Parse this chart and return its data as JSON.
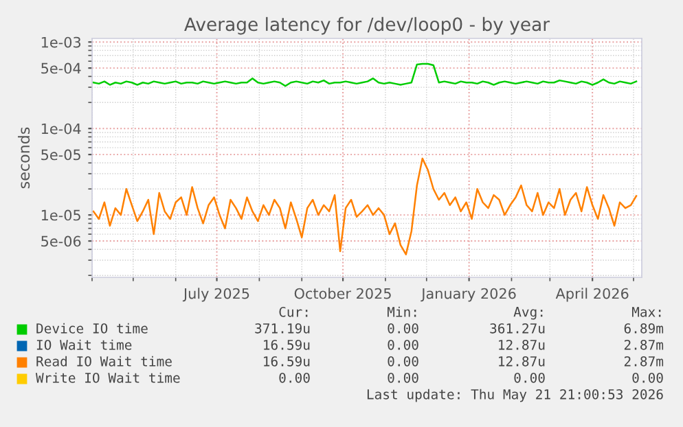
{
  "chart_data": {
    "type": "line",
    "title": "Average latency for /dev/loop0 - by year",
    "ylabel": "seconds",
    "log": "y",
    "grid": true,
    "legend": "bottom",
    "line_style": "solid",
    "marker": "none",
    "ylim": [
      1.9e-06,
      0.0011
    ],
    "yticks": [
      {
        "value": 0.001,
        "label": "1e-03"
      },
      {
        "value": 0.0005,
        "label": "5e-04"
      },
      {
        "value": 0.0001,
        "label": "1e-04"
      },
      {
        "value": 5e-05,
        "label": "5e-05"
      },
      {
        "value": 1e-05,
        "label": "1e-05"
      },
      {
        "value": 5e-06,
        "label": "5e-06"
      }
    ],
    "xlim": [
      "2025-04-01",
      "2026-05-07"
    ],
    "xticks": [
      {
        "value": "2025-07-01",
        "label": "July 2025"
      },
      {
        "value": "2025-10-01",
        "label": "October 2025"
      },
      {
        "value": "2026-01-01",
        "label": "January 2026"
      },
      {
        "value": "2026-04-01",
        "label": "April 2026"
      }
    ],
    "x": [
      "2025-04-02",
      "2025-04-06",
      "2025-04-10",
      "2025-04-14",
      "2025-04-18",
      "2025-04-22",
      "2025-04-26",
      "2025-04-30",
      "2025-05-04",
      "2025-05-08",
      "2025-05-12",
      "2025-05-16",
      "2025-05-20",
      "2025-05-24",
      "2025-05-28",
      "2025-06-01",
      "2025-06-05",
      "2025-06-09",
      "2025-06-13",
      "2025-06-17",
      "2025-06-21",
      "2025-06-25",
      "2025-06-29",
      "2025-07-03",
      "2025-07-07",
      "2025-07-11",
      "2025-07-15",
      "2025-07-19",
      "2025-07-23",
      "2025-07-27",
      "2025-07-31",
      "2025-08-04",
      "2025-08-08",
      "2025-08-12",
      "2025-08-16",
      "2025-08-20",
      "2025-08-24",
      "2025-08-28",
      "2025-09-01",
      "2025-09-05",
      "2025-09-09",
      "2025-09-13",
      "2025-09-17",
      "2025-09-21",
      "2025-09-25",
      "2025-09-29",
      "2025-10-03",
      "2025-10-07",
      "2025-10-11",
      "2025-10-15",
      "2025-10-19",
      "2025-10-23",
      "2025-10-27",
      "2025-10-31",
      "2025-11-04",
      "2025-11-08",
      "2025-11-12",
      "2025-11-16",
      "2025-11-20",
      "2025-11-24",
      "2025-11-28",
      "2025-12-02",
      "2025-12-06",
      "2025-12-10",
      "2025-12-14",
      "2025-12-18",
      "2025-12-22",
      "2025-12-26",
      "2025-12-30",
      "2026-01-03",
      "2026-01-07",
      "2026-01-11",
      "2026-01-15",
      "2026-01-19",
      "2026-01-23",
      "2026-01-27",
      "2026-01-31",
      "2026-02-04",
      "2026-02-08",
      "2026-02-12",
      "2026-02-16",
      "2026-02-20",
      "2026-02-24",
      "2026-02-28",
      "2026-03-04",
      "2026-03-08",
      "2026-03-12",
      "2026-03-16",
      "2026-03-20",
      "2026-03-24",
      "2026-03-28",
      "2026-04-01",
      "2026-04-05",
      "2026-04-09",
      "2026-04-13",
      "2026-04-17",
      "2026-04-21",
      "2026-04-25",
      "2026-04-29",
      "2026-05-03"
    ],
    "series": [
      {
        "name": "Device IO time",
        "color": "#00cc00",
        "values": [
          0.00034,
          0.00033,
          0.00035,
          0.00032,
          0.00034,
          0.00033,
          0.00035,
          0.00034,
          0.00032,
          0.00034,
          0.00033,
          0.00035,
          0.00034,
          0.00033,
          0.00034,
          0.00035,
          0.00033,
          0.00034,
          0.00034,
          0.00033,
          0.00035,
          0.00034,
          0.00033,
          0.00034,
          0.00035,
          0.00034,
          0.00033,
          0.00034,
          0.00034,
          0.00038,
          0.00034,
          0.00033,
          0.00034,
          0.00035,
          0.00034,
          0.00031,
          0.00034,
          0.00035,
          0.00034,
          0.00033,
          0.00035,
          0.00034,
          0.00036,
          0.00033,
          0.00034,
          0.00034,
          0.00035,
          0.00034,
          0.00033,
          0.00034,
          0.00035,
          0.00038,
          0.00034,
          0.00033,
          0.00034,
          0.00033,
          0.00032,
          0.00033,
          0.00034,
          0.00055,
          0.00056,
          0.00056,
          0.00054,
          0.00034,
          0.00035,
          0.00034,
          0.00033,
          0.00035,
          0.00034,
          0.00034,
          0.00033,
          0.00035,
          0.00034,
          0.00032,
          0.00034,
          0.00035,
          0.00034,
          0.00033,
          0.00034,
          0.00035,
          0.00034,
          0.00033,
          0.00035,
          0.00034,
          0.00034,
          0.00036,
          0.00035,
          0.00034,
          0.00033,
          0.00035,
          0.00034,
          0.00032,
          0.00034,
          0.00037,
          0.00034,
          0.00033,
          0.00035,
          0.00034,
          0.00033,
          0.00035
        ]
      },
      {
        "name": "IO Wait time",
        "color": "#0066b3",
        "values": [
          null,
          null,
          null,
          null,
          null,
          null,
          null,
          null,
          null,
          null,
          null,
          null,
          null,
          null,
          null,
          null,
          null,
          null,
          null,
          null,
          null,
          null,
          null,
          null,
          null,
          null,
          null,
          null,
          null,
          null,
          null,
          null,
          null,
          null,
          null,
          null,
          null,
          null,
          null,
          null,
          null,
          null,
          null,
          null,
          null,
          null,
          null,
          null,
          null,
          null,
          null,
          null,
          null,
          null,
          null,
          null,
          null,
          null,
          null,
          null,
          null,
          null,
          null,
          null,
          null,
          null,
          null,
          null,
          null,
          null,
          null,
          null,
          null,
          null,
          null,
          null,
          null,
          null,
          null,
          null,
          null,
          null,
          null,
          null,
          null,
          null,
          null,
          null,
          null,
          null,
          null,
          null,
          null,
          null,
          null,
          null,
          null,
          null,
          null,
          null
        ]
      },
      {
        "name": "Read IO Wait time",
        "color": "#ff8000",
        "values": [
          1.1e-05,
          9e-06,
          1.4e-05,
          7.5e-06,
          1.2e-05,
          1e-05,
          2e-05,
          1.3e-05,
          8.5e-06,
          1.1e-05,
          1.5e-05,
          6e-06,
          1.8e-05,
          1.1e-05,
          9e-06,
          1.4e-05,
          1.6e-05,
          1e-05,
          2.1e-05,
          1.2e-05,
          8e-06,
          1.3e-05,
          1.6e-05,
          1e-05,
          7e-06,
          1.5e-05,
          1.2e-05,
          9e-06,
          1.6e-05,
          1.1e-05,
          8.5e-06,
          1.3e-05,
          1e-05,
          1.5e-05,
          1.2e-05,
          7e-06,
          1.4e-05,
          9e-06,
          5.5e-06,
          1.2e-05,
          1.5e-05,
          1e-05,
          1.3e-05,
          1.1e-05,
          1.7e-05,
          3.8e-06,
          1.2e-05,
          1.5e-05,
          9.5e-06,
          1.1e-05,
          1.3e-05,
          1e-05,
          1.2e-05,
          1e-05,
          6e-06,
          8e-06,
          4.5e-06,
          3.5e-06,
          6.5e-06,
          2.2e-05,
          4.5e-05,
          3.3e-05,
          2e-05,
          1.5e-05,
          1.8e-05,
          1.3e-05,
          1.6e-05,
          1.1e-05,
          1.4e-05,
          9e-06,
          2e-05,
          1.4e-05,
          1.2e-05,
          1.7e-05,
          1.5e-05,
          1e-05,
          1.3e-05,
          1.6e-05,
          2.2e-05,
          1.3e-05,
          1.1e-05,
          1.8e-05,
          1e-05,
          1.4e-05,
          1.2e-05,
          2e-05,
          1e-05,
          1.5e-05,
          1.8e-05,
          1.1e-05,
          2.1e-05,
          1.3e-05,
          9e-06,
          1.7e-05,
          1.2e-05,
          7.5e-06,
          1.4e-05,
          1.2e-05,
          1.3e-05,
          1.66e-05
        ]
      },
      {
        "name": "Write IO Wait time",
        "color": "#ffcc00",
        "values": [
          null,
          null,
          null,
          null,
          null,
          null,
          null,
          null,
          null,
          null,
          null,
          null,
          null,
          null,
          null,
          null,
          null,
          null,
          null,
          null,
          null,
          null,
          null,
          null,
          null,
          null,
          null,
          null,
          null,
          null,
          null,
          null,
          null,
          null,
          null,
          null,
          null,
          null,
          null,
          null,
          null,
          null,
          null,
          null,
          null,
          null,
          null,
          null,
          null,
          null,
          null,
          null,
          null,
          null,
          null,
          null,
          null,
          null,
          null,
          null,
          null,
          null,
          null,
          null,
          null,
          null,
          null,
          null,
          null,
          null,
          null,
          null,
          null,
          null,
          null,
          null,
          null,
          null,
          null,
          null,
          null,
          null,
          null,
          null,
          null,
          null,
          null,
          null,
          null,
          null,
          null,
          null,
          null,
          null,
          null,
          null,
          null,
          null,
          null,
          null
        ]
      }
    ],
    "annotations": [
      "Cur:",
      "Min:",
      "Avg:",
      "Max:",
      "371.19u",
      "0.00",
      "361.27u",
      "6.89m",
      "16.59u",
      "0.00",
      "12.87u",
      "2.87m",
      "16.59u",
      "0.00",
      "12.87u",
      "2.87m",
      "0.00",
      "0.00",
      "0.00",
      "0.00",
      "Last update: Thu May 21 21:00:53 2026"
    ]
  }
}
